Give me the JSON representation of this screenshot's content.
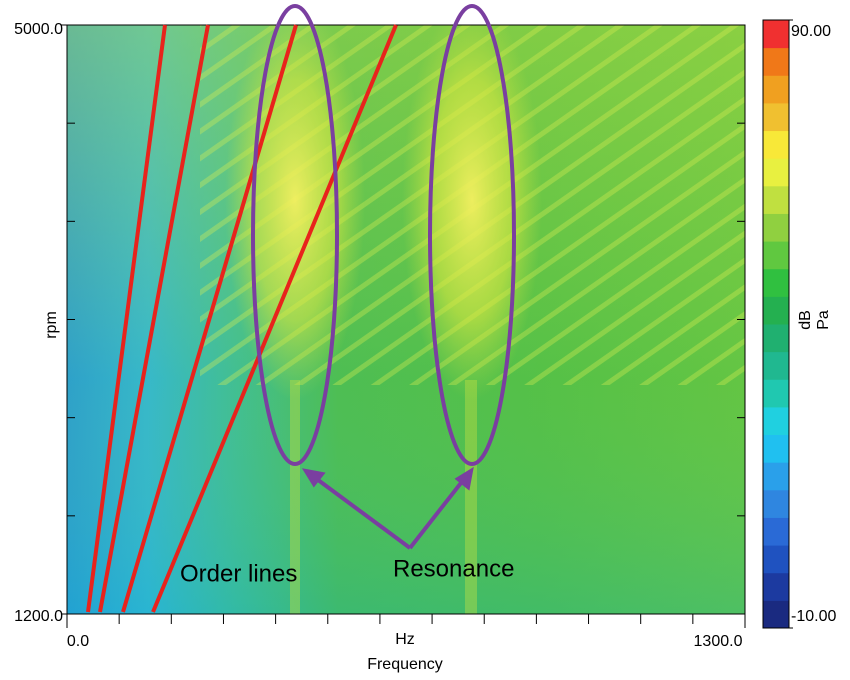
{
  "chart_data": {
    "type": "heatmap",
    "x_label": "Frequency",
    "x_unit": "Hz",
    "y_label": "rpm",
    "xlim": [
      0,
      1300
    ],
    "xticks": [
      {
        "value": 0,
        "label": "0.0"
      },
      {
        "value": 1300,
        "label": "1300.0"
      }
    ],
    "ylim": [
      1200,
      5000
    ],
    "yticks": [
      {
        "value": 1200,
        "label": "1200.0"
      },
      {
        "value": 5000,
        "label": "5000.0"
      }
    ],
    "colorbar": {
      "label": [
        "dB",
        "Pa"
      ],
      "lim": [
        -10,
        90
      ],
      "ticks": [
        {
          "value": -10,
          "label": "-10.00"
        },
        {
          "value": 90,
          "label": "90.00"
        }
      ],
      "colors": [
        "#1a2a80",
        "#1c3aa0",
        "#1f52c0",
        "#2a6ad6",
        "#2f86e0",
        "#2aa0ea",
        "#20c0f0",
        "#20d0e0",
        "#20c8b0",
        "#20b890",
        "#20b070",
        "#24b050",
        "#30c040",
        "#60c840",
        "#90d040",
        "#c0e040",
        "#e8f040",
        "#f8e838",
        "#f0c030",
        "#f0a020",
        "#f07818",
        "#f03030"
      ]
    },
    "annotations": [
      {
        "text": "Order lines",
        "color": "#e8231c"
      },
      {
        "text": "Resonance",
        "color": "#7a3fa0"
      }
    ]
  }
}
